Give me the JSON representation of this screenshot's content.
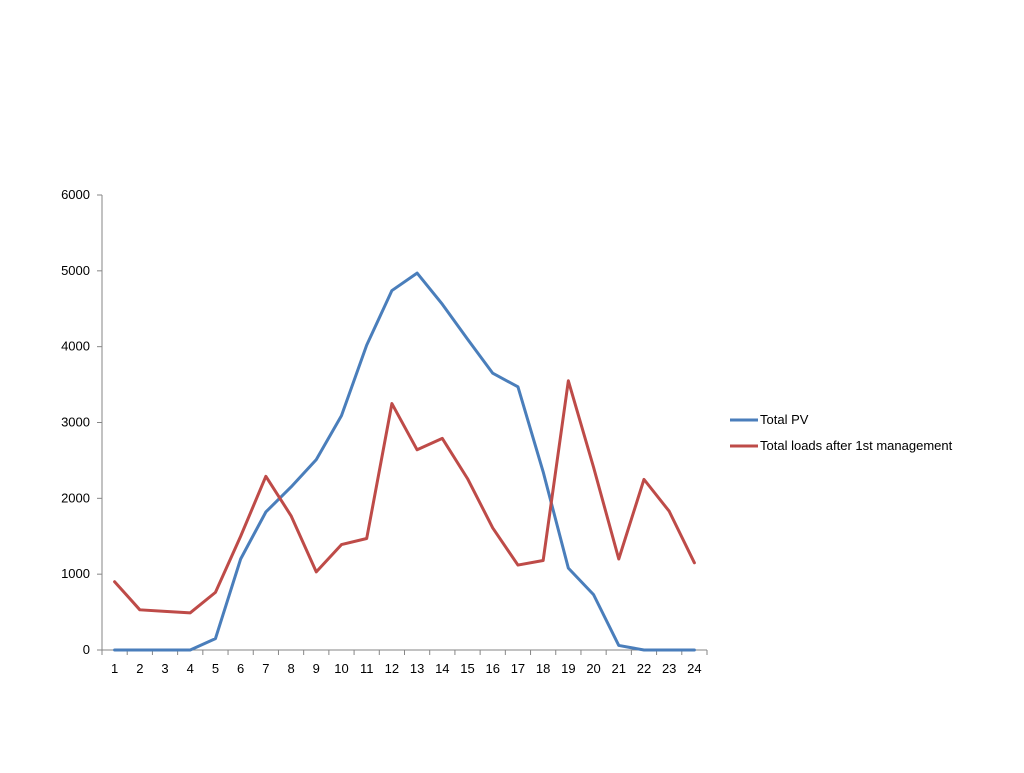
{
  "chart_data": {
    "type": "line",
    "title": "",
    "xlabel": "",
    "ylabel": "",
    "categories": [
      "1",
      "2",
      "3",
      "4",
      "5",
      "6",
      "7",
      "8",
      "9",
      "10",
      "11",
      "12",
      "13",
      "14",
      "15",
      "16",
      "17",
      "18",
      "19",
      "20",
      "21",
      "22",
      "23",
      "24"
    ],
    "ylim": [
      0,
      6000
    ],
    "yticks": [
      0,
      1000,
      2000,
      3000,
      4000,
      5000,
      6000
    ],
    "grid": false,
    "legend_position": "right",
    "series": [
      {
        "name": "Total PV",
        "color": "#4a7ebb",
        "values": [
          0,
          0,
          0,
          0,
          150,
          1200,
          1820,
          2150,
          2510,
          3090,
          4020,
          4740,
          4970,
          4560,
          4100,
          3650,
          3470,
          2350,
          1080,
          730,
          60,
          0,
          0,
          0
        ]
      },
      {
        "name": "Total loads after 1st management",
        "color": "#be4b48",
        "values": [
          900,
          530,
          510,
          490,
          760,
          1500,
          2290,
          1770,
          1030,
          1390,
          1470,
          3250,
          2640,
          2790,
          2260,
          1610,
          1120,
          1180,
          3550,
          2410,
          1200,
          2250,
          1830,
          1150
        ]
      }
    ]
  }
}
